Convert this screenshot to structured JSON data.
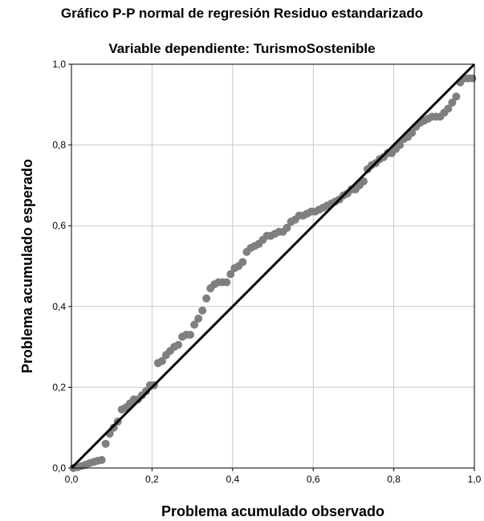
{
  "chart_data": {
    "type": "scatter",
    "title": "Gráfico P-P normal de regresión Residuo estandarizado",
    "subtitle": "Variable dependiente: TurismoSostenible",
    "xlabel": "Problema acumulado observado",
    "ylabel": "Problema acumulado esperado",
    "xlim": [
      0,
      1
    ],
    "ylim": [
      0,
      1
    ],
    "grid": true,
    "legend": "none",
    "x_ticks": [
      "0,0",
      "0,2",
      "0,4",
      "0,6",
      "0,8",
      "1,0"
    ],
    "y_ticks": [
      "0,0",
      "0,2",
      "0,4",
      "0,6",
      "0,8",
      "1,0"
    ],
    "reference_line": {
      "from": [
        0,
        0
      ],
      "to": [
        1,
        1
      ],
      "color": "#000000"
    },
    "point_color": "#7f7f7f",
    "points": [
      [
        0.005,
        0.0
      ],
      [
        0.015,
        0.002
      ],
      [
        0.025,
        0.005
      ],
      [
        0.035,
        0.008
      ],
      [
        0.045,
        0.012
      ],
      [
        0.055,
        0.015
      ],
      [
        0.065,
        0.018
      ],
      [
        0.075,
        0.02
      ],
      [
        0.085,
        0.06
      ],
      [
        0.095,
        0.085
      ],
      [
        0.105,
        0.1
      ],
      [
        0.115,
        0.115
      ],
      [
        0.125,
        0.145
      ],
      [
        0.135,
        0.15
      ],
      [
        0.145,
        0.16
      ],
      [
        0.155,
        0.17
      ],
      [
        0.165,
        0.17
      ],
      [
        0.175,
        0.18
      ],
      [
        0.185,
        0.19
      ],
      [
        0.195,
        0.205
      ],
      [
        0.205,
        0.205
      ],
      [
        0.215,
        0.26
      ],
      [
        0.225,
        0.265
      ],
      [
        0.235,
        0.28
      ],
      [
        0.245,
        0.29
      ],
      [
        0.255,
        0.3
      ],
      [
        0.265,
        0.305
      ],
      [
        0.275,
        0.325
      ],
      [
        0.285,
        0.33
      ],
      [
        0.295,
        0.33
      ],
      [
        0.305,
        0.355
      ],
      [
        0.315,
        0.37
      ],
      [
        0.325,
        0.39
      ],
      [
        0.335,
        0.42
      ],
      [
        0.345,
        0.445
      ],
      [
        0.355,
        0.455
      ],
      [
        0.365,
        0.46
      ],
      [
        0.375,
        0.46
      ],
      [
        0.385,
        0.46
      ],
      [
        0.395,
        0.48
      ],
      [
        0.405,
        0.495
      ],
      [
        0.415,
        0.5
      ],
      [
        0.425,
        0.51
      ],
      [
        0.435,
        0.535
      ],
      [
        0.445,
        0.545
      ],
      [
        0.455,
        0.55
      ],
      [
        0.465,
        0.555
      ],
      [
        0.475,
        0.565
      ],
      [
        0.485,
        0.575
      ],
      [
        0.495,
        0.575
      ],
      [
        0.505,
        0.58
      ],
      [
        0.515,
        0.585
      ],
      [
        0.525,
        0.585
      ],
      [
        0.535,
        0.595
      ],
      [
        0.545,
        0.61
      ],
      [
        0.555,
        0.615
      ],
      [
        0.565,
        0.625
      ],
      [
        0.575,
        0.625
      ],
      [
        0.585,
        0.63
      ],
      [
        0.595,
        0.635
      ],
      [
        0.605,
        0.635
      ],
      [
        0.615,
        0.64
      ],
      [
        0.625,
        0.645
      ],
      [
        0.635,
        0.65
      ],
      [
        0.645,
        0.655
      ],
      [
        0.655,
        0.66
      ],
      [
        0.665,
        0.665
      ],
      [
        0.675,
        0.675
      ],
      [
        0.685,
        0.68
      ],
      [
        0.695,
        0.69
      ],
      [
        0.705,
        0.69
      ],
      [
        0.715,
        0.7
      ],
      [
        0.725,
        0.71
      ],
      [
        0.735,
        0.74
      ],
      [
        0.745,
        0.75
      ],
      [
        0.755,
        0.755
      ],
      [
        0.765,
        0.765
      ],
      [
        0.775,
        0.77
      ],
      [
        0.785,
        0.78
      ],
      [
        0.795,
        0.78
      ],
      [
        0.805,
        0.79
      ],
      [
        0.815,
        0.8
      ],
      [
        0.825,
        0.815
      ],
      [
        0.835,
        0.82
      ],
      [
        0.845,
        0.83
      ],
      [
        0.855,
        0.845
      ],
      [
        0.865,
        0.855
      ],
      [
        0.875,
        0.86
      ],
      [
        0.885,
        0.865
      ],
      [
        0.895,
        0.87
      ],
      [
        0.905,
        0.87
      ],
      [
        0.915,
        0.87
      ],
      [
        0.925,
        0.88
      ],
      [
        0.935,
        0.89
      ],
      [
        0.945,
        0.905
      ],
      [
        0.955,
        0.92
      ],
      [
        0.965,
        0.955
      ],
      [
        0.975,
        0.965
      ],
      [
        0.985,
        0.965
      ],
      [
        0.995,
        0.965
      ]
    ]
  }
}
